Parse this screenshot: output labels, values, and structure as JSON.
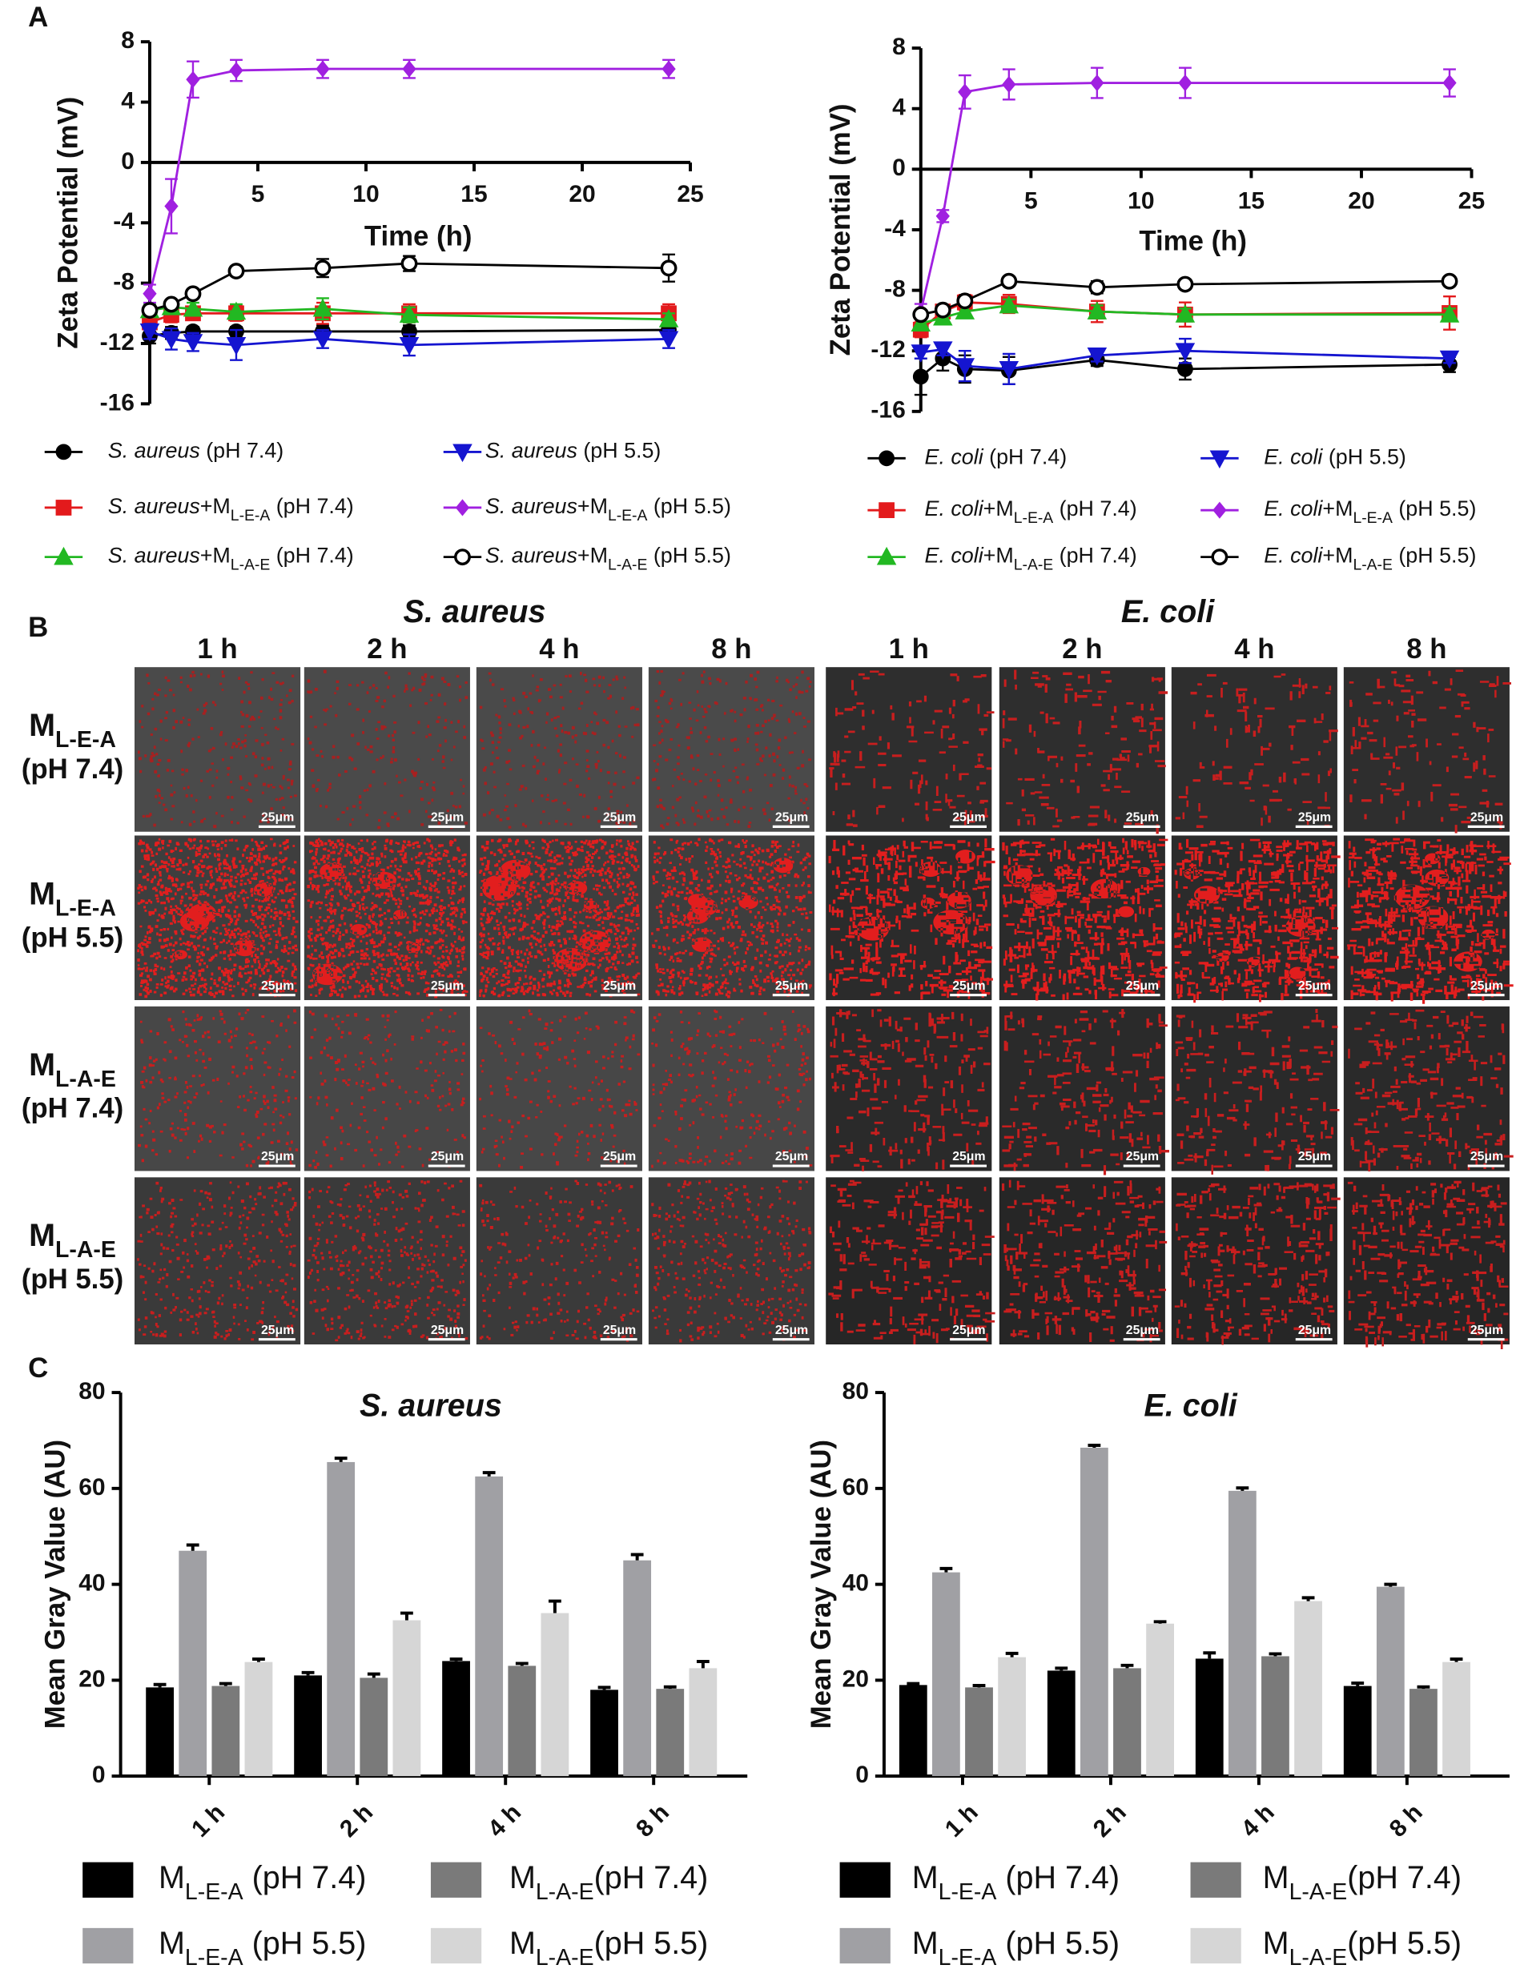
{
  "panel_labels": [
    "A",
    "B",
    "C"
  ],
  "chart_data": [
    {
      "type": "line",
      "xlabel": "Time (h)",
      "ylabel": "Zeta Potential (mV)",
      "x": [
        0,
        1,
        2,
        4,
        8,
        12,
        24
      ],
      "xlim": [
        0,
        25
      ],
      "xticks": [
        5,
        10,
        15,
        20,
        25
      ],
      "ylim": [
        -16,
        8
      ],
      "yticks": [
        8,
        4,
        0,
        -4,
        -8,
        -12,
        -16
      ],
      "series": [
        {
          "name": "S. aureus (pH 7.4)",
          "color": "#000000",
          "marker": "circle",
          "values": [
            -11.5,
            -11.3,
            -11.2,
            -11.2,
            -11.2,
            -11.2,
            -11.1
          ],
          "errors": [
            0.5,
            0.4,
            0.3,
            0.3,
            0.4,
            0.4,
            0.3
          ]
        },
        {
          "name": "S. aureus+ML-E-A (pH 7.4)",
          "color": "#e31a1c",
          "marker": "square",
          "values": [
            -10.6,
            -10.1,
            -10.0,
            -10.0,
            -10.0,
            -10.0,
            -10.0
          ],
          "errors": [
            0.4,
            0.5,
            0.4,
            0.5,
            0.7,
            0.6,
            0.6
          ]
        },
        {
          "name": "S. aureus+ML-A-E (pH 7.4)",
          "color": "#22b822",
          "marker": "triangle-up",
          "values": [
            -9.8,
            -9.6,
            -9.7,
            -9.9,
            -9.7,
            -10.1,
            -10.4
          ],
          "errors": [
            0.4,
            0.4,
            0.4,
            0.5,
            0.7,
            0.5,
            0.4
          ]
        },
        {
          "name": "S. aureus (pH 5.5)",
          "color": "#1515d0",
          "marker": "triangle-down",
          "values": [
            -11.2,
            -11.7,
            -11.9,
            -12.1,
            -11.7,
            -12.1,
            -11.7
          ],
          "errors": [
            0.5,
            0.7,
            0.6,
            1.0,
            0.6,
            0.7,
            0.6
          ]
        },
        {
          "name": "S. aureus+ML-E-A (pH 5.5)",
          "color": "#a020e0",
          "marker": "diamond",
          "values": [
            -8.7,
            -2.9,
            5.5,
            6.1,
            6.2,
            6.2,
            6.2
          ],
          "errors": [
            0.6,
            1.8,
            1.2,
            0.7,
            0.6,
            0.6,
            0.6
          ]
        },
        {
          "name": "S. aureus+ML-A-E (pH 5.5)",
          "color": "#000000",
          "marker": "open-circle",
          "values": [
            -9.8,
            -9.4,
            -8.7,
            -7.2,
            -7.0,
            -6.7,
            -7.0
          ],
          "errors": [
            0.3,
            0.3,
            0.3,
            0.3,
            0.6,
            0.5,
            0.9
          ]
        }
      ]
    },
    {
      "type": "line",
      "xlabel": "Time (h)",
      "ylabel": "Zeta Potential (mV)",
      "x": [
        0,
        1,
        2,
        4,
        8,
        12,
        24
      ],
      "xlim": [
        0,
        25
      ],
      "xticks": [
        5,
        10,
        15,
        20,
        25
      ],
      "ylim": [
        -16,
        8
      ],
      "yticks": [
        8,
        4,
        0,
        -4,
        -8,
        -12,
        -16
      ],
      "series": [
        {
          "name": "E. coli (pH 7.4)",
          "color": "#000000",
          "marker": "circle",
          "values": [
            -13.7,
            -12.5,
            -13.2,
            -13.3,
            -12.6,
            -13.2,
            -12.9
          ],
          "errors": [
            1.2,
            0.8,
            0.9,
            0.9,
            0.4,
            0.7,
            0.5
          ]
        },
        {
          "name": "E. coli+ML-E-A (pH 7.4)",
          "color": "#e31a1c",
          "marker": "square",
          "values": [
            -10.6,
            -9.4,
            -8.8,
            -8.9,
            -9.4,
            -9.6,
            -9.5
          ],
          "errors": [
            0.5,
            0.4,
            0.5,
            0.6,
            0.7,
            0.8,
            1.1
          ]
        },
        {
          "name": "E. coli+ML-A-E (pH 7.4)",
          "color": "#22b822",
          "marker": "triangle-up",
          "values": [
            -10.2,
            -9.8,
            -9.4,
            -9.0,
            -9.4,
            -9.6,
            -9.6
          ],
          "errors": [
            0.4,
            0.4,
            0.4,
            0.4,
            0.4,
            0.4,
            0.4
          ]
        },
        {
          "name": "E. coli (pH 5.5)",
          "color": "#1515d0",
          "marker": "triangle-down",
          "values": [
            -12.1,
            -11.9,
            -13.0,
            -13.2,
            -12.3,
            -12.0,
            -12.5
          ],
          "errors": [
            0.4,
            0.4,
            1.0,
            1.0,
            0.4,
            0.8,
            0.3
          ]
        },
        {
          "name": "E. coli+ML-E-A (pH 5.5)",
          "color": "#a020e0",
          "marker": "diamond",
          "values": [
            -9.4,
            -3.1,
            5.1,
            5.6,
            5.7,
            5.7,
            5.7
          ],
          "errors": [
            0.5,
            0.4,
            1.1,
            1.0,
            1.0,
            1.0,
            0.9
          ]
        },
        {
          "name": "E. coli+ML-A-E (pH 5.5)",
          "color": "#000000",
          "marker": "open-circle",
          "values": [
            -9.6,
            -9.3,
            -8.7,
            -7.4,
            -7.8,
            -7.6,
            -7.4
          ],
          "errors": [
            0.3,
            0.3,
            0.3,
            0.3,
            0.4,
            0.3,
            0.3
          ]
        }
      ]
    },
    {
      "type": "bar",
      "title": "S. aureus",
      "ylabel": "Mean Gray Value (AU)",
      "categories": [
        "1 h",
        "2 h",
        "4 h",
        "8 h"
      ],
      "ylim": [
        0,
        80
      ],
      "yticks": [
        0,
        20,
        40,
        60,
        80
      ],
      "series": [
        {
          "name": "ML-E-A (pH 7.4)",
          "color": "#000000",
          "values": [
            18.5,
            21,
            24,
            18
          ],
          "errors": [
            0.6,
            0.6,
            0.4,
            0.5
          ]
        },
        {
          "name": "ML-E-A (pH 5.5)",
          "color": "#a0a0a4",
          "values": [
            47,
            65.5,
            62.5,
            45
          ],
          "errors": [
            1.2,
            0.8,
            0.8,
            1.2
          ]
        },
        {
          "name": "ML-A-E(pH 7.4)",
          "color": "#7a7a7a",
          "values": [
            18.8,
            20.5,
            23,
            18.2
          ],
          "errors": [
            0.5,
            0.8,
            0.5,
            0.4
          ]
        },
        {
          "name": "ML-A-E(pH 5.5)",
          "color": "#d6d6d6",
          "values": [
            23.8,
            32.5,
            34,
            22.5
          ],
          "errors": [
            0.6,
            1.5,
            2.5,
            1.4
          ]
        }
      ]
    },
    {
      "type": "bar",
      "title": "E. coli",
      "ylabel": "Mean Gray Value (AU)",
      "categories": [
        "1 h",
        "2 h",
        "4 h",
        "8 h"
      ],
      "ylim": [
        0,
        80
      ],
      "yticks": [
        0,
        20,
        40,
        60,
        80
      ],
      "series": [
        {
          "name": "ML-E-A (pH 7.4)",
          "color": "#000000",
          "values": [
            19,
            22,
            24.5,
            18.8
          ],
          "errors": [
            0.3,
            0.5,
            1.2,
            0.6
          ]
        },
        {
          "name": "ML-E-A (pH 5.5)",
          "color": "#a0a0a4",
          "values": [
            42.5,
            68.5,
            59.5,
            39.5
          ],
          "errors": [
            0.8,
            0.5,
            0.6,
            0.5
          ]
        },
        {
          "name": "ML-A-E(pH 7.4)",
          "color": "#7a7a7a",
          "values": [
            18.5,
            22.5,
            25,
            18.2
          ],
          "errors": [
            0.4,
            0.6,
            0.5,
            0.4
          ]
        },
        {
          "name": "ML-A-E(pH 5.5)",
          "color": "#d6d6d6",
          "values": [
            24.8,
            31.8,
            36.5,
            23.8
          ],
          "errors": [
            0.8,
            0.4,
            0.7,
            0.6
          ]
        }
      ]
    }
  ],
  "micrographs": {
    "species": [
      "S. aureus",
      "E. coli"
    ],
    "times": [
      "1 h",
      "2 h",
      "4 h",
      "8 h"
    ],
    "rows": [
      {
        "name": "ML-E-A",
        "condition": "(pH 7.4)"
      },
      {
        "name": "ML-E-A",
        "condition": "(pH 5.5)"
      },
      {
        "name": "ML-A-E",
        "condition": "(pH 7.4)"
      },
      {
        "name": "ML-A-E",
        "condition": "(pH 5.5)"
      }
    ],
    "scale_bar": "25μm"
  }
}
